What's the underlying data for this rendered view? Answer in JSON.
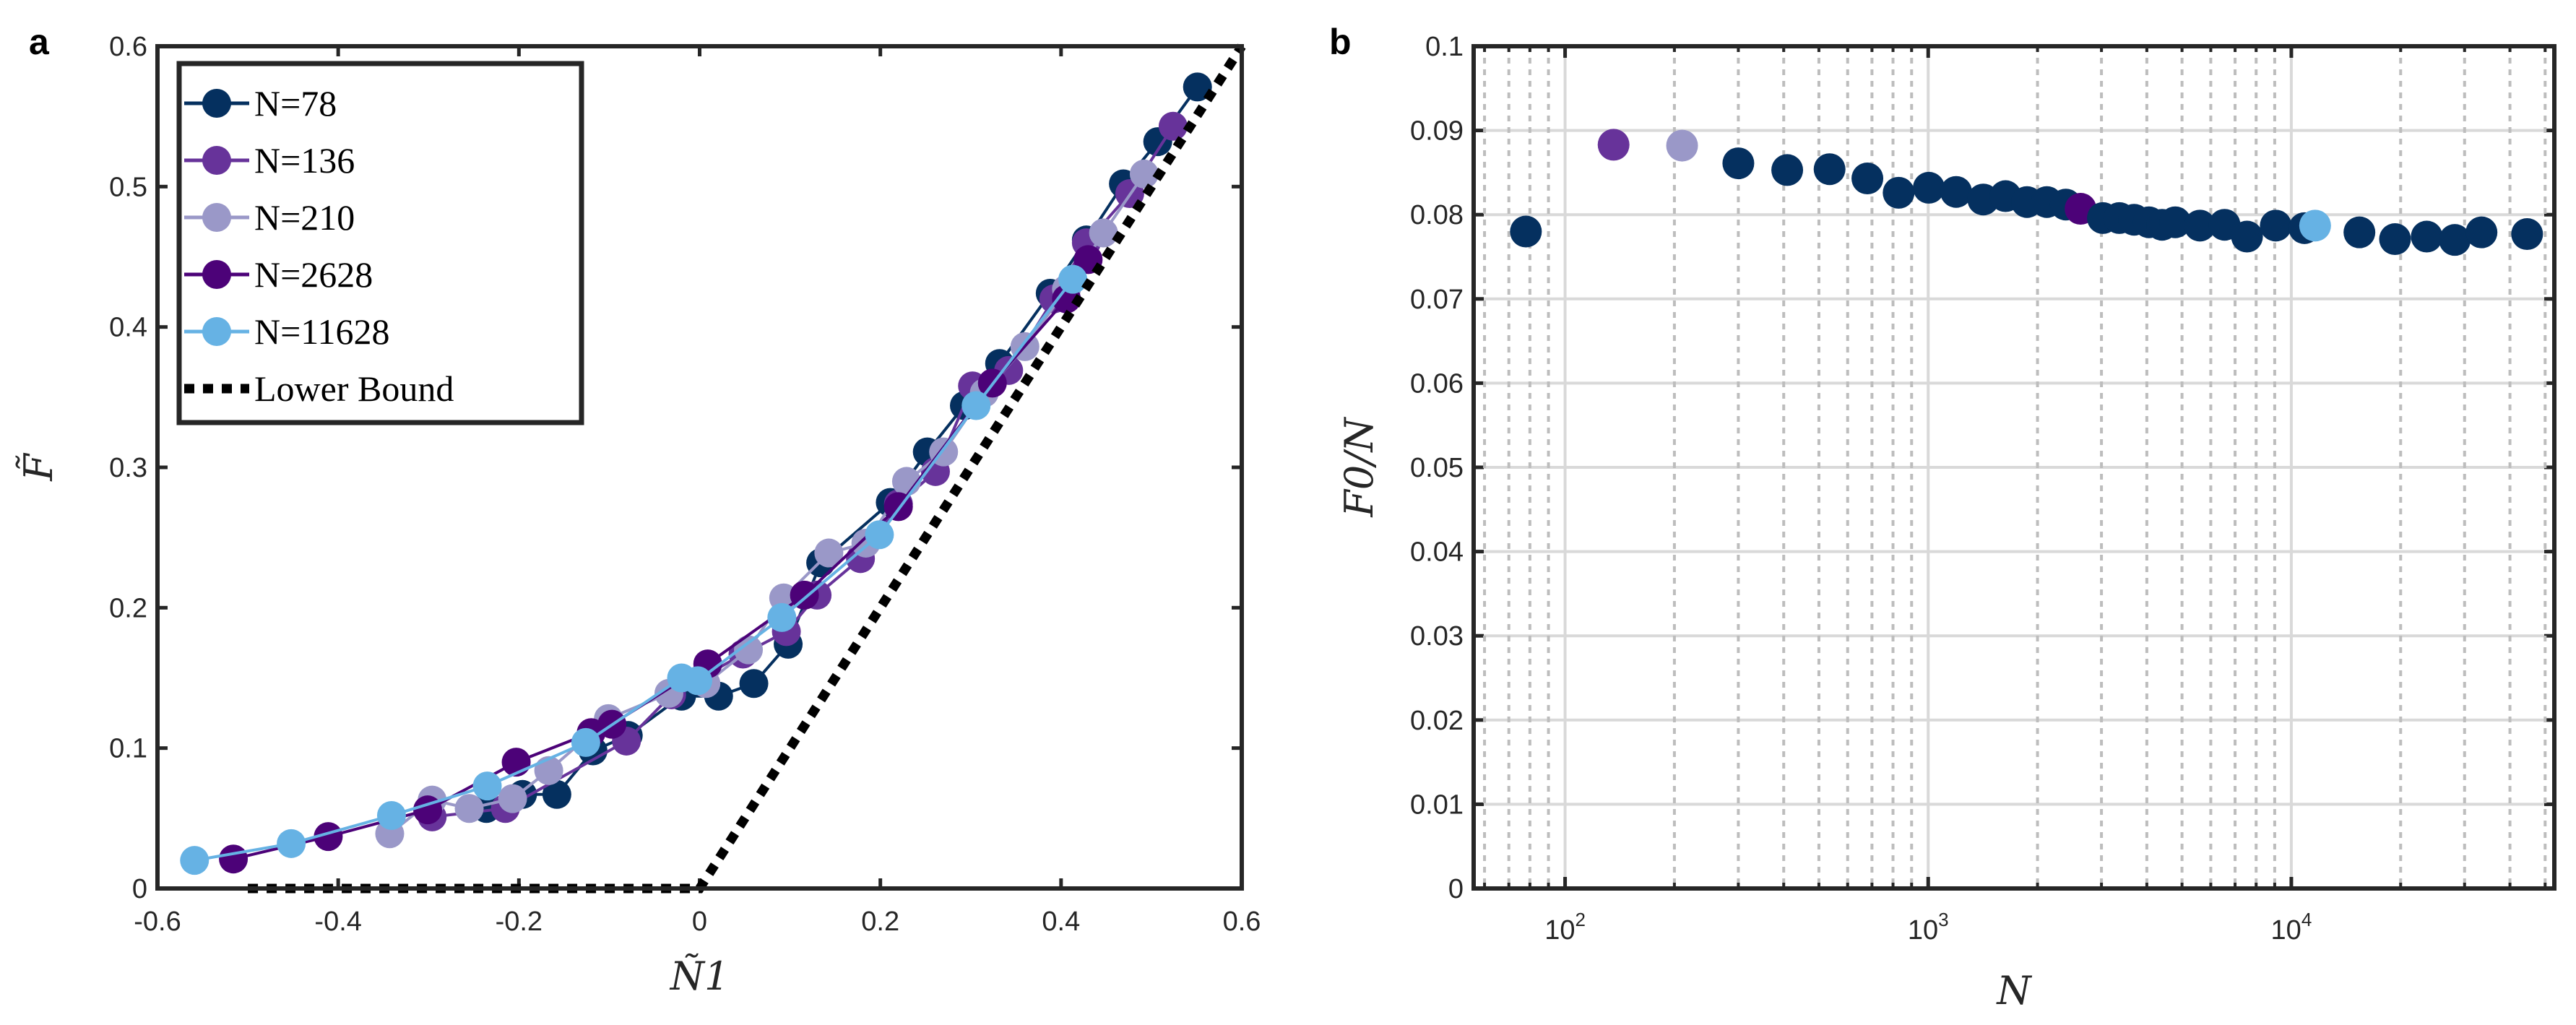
{
  "chart_data": [
    {
      "panel_label": "a",
      "type": "line",
      "xlabel": "Ñ1",
      "ylabel": "F̃",
      "xlim": [
        -0.6,
        0.6
      ],
      "ylim": [
        0,
        0.6
      ],
      "xticks": [
        "-0.6",
        "-0.4",
        "-0.2",
        "0",
        "0.2",
        "0.4",
        "0.6"
      ],
      "yticks": [
        "0",
        "0.1",
        "0.2",
        "0.3",
        "0.4",
        "0.5",
        "0.6"
      ],
      "grid": false,
      "legend_placement": "top-left",
      "series": [
        {
          "name": "N=78",
          "color": "#05305f",
          "marker": "circle",
          "x": [
            -0.236,
            -0.196,
            -0.158,
            -0.118,
            -0.079,
            -0.02,
            0.021,
            0.06,
            0.098,
            0.134,
            0.211,
            0.252,
            0.293,
            0.332,
            0.388,
            0.428,
            0.469,
            0.507,
            0.551
          ],
          "y": [
            0.057,
            0.067,
            0.067,
            0.098,
            0.109,
            0.137,
            0.137,
            0.146,
            0.174,
            0.232,
            0.275,
            0.311,
            0.344,
            0.374,
            0.424,
            0.462,
            0.502,
            0.532,
            0.571
          ]
        },
        {
          "name": "N=136",
          "color": "#67339a",
          "marker": "circle",
          "x": [
            -0.296,
            -0.215,
            -0.081,
            -0.031,
            0.048,
            0.096,
            0.13,
            0.178,
            0.22,
            0.261,
            0.302,
            0.342,
            0.392,
            0.428,
            0.476,
            0.524
          ],
          "y": [
            0.051,
            0.057,
            0.105,
            0.138,
            0.167,
            0.183,
            0.209,
            0.235,
            0.274,
            0.297,
            0.358,
            0.369,
            0.42,
            0.46,
            0.495,
            0.543
          ]
        },
        {
          "name": "N=210",
          "color": "#9a98c8",
          "marker": "circle",
          "x": [
            -0.343,
            -0.296,
            -0.255,
            -0.207,
            -0.167,
            -0.101,
            -0.034,
            0.007,
            0.054,
            0.093,
            0.143,
            0.184,
            0.229,
            0.27,
            0.315,
            0.36,
            0.406,
            0.447,
            0.492
          ],
          "y": [
            0.039,
            0.063,
            0.057,
            0.064,
            0.084,
            0.121,
            0.139,
            0.146,
            0.17,
            0.207,
            0.239,
            0.246,
            0.29,
            0.311,
            0.353,
            0.386,
            0.427,
            0.467,
            0.509
          ]
        },
        {
          "name": "N=2628",
          "color": "#4c0278",
          "marker": "circle",
          "x": [
            -0.516,
            -0.411,
            -0.301,
            -0.203,
            -0.12,
            -0.097,
            0.009,
            0.116,
            0.22,
            0.324,
            0.406,
            0.43
          ],
          "y": [
            0.021,
            0.037,
            0.056,
            0.09,
            0.111,
            0.117,
            0.16,
            0.209,
            0.272,
            0.36,
            0.42,
            0.448
          ]
        },
        {
          "name": "N=11628",
          "color": "#66b2e4",
          "marker": "circle",
          "x": [
            -0.559,
            -0.452,
            -0.341,
            -0.235,
            -0.126,
            -0.02,
            -0.002,
            0.091,
            0.199,
            0.306,
            0.413
          ],
          "y": [
            0.02,
            0.032,
            0.052,
            0.073,
            0.104,
            0.15,
            0.148,
            0.193,
            0.252,
            0.344,
            0.434
          ]
        },
        {
          "name": "Lower Bound",
          "color": "#000000",
          "style": "dotted",
          "x": [
            -0.5,
            0,
            0.6
          ],
          "y": [
            0,
            0,
            0.6
          ]
        }
      ]
    },
    {
      "panel_label": "b",
      "type": "scatter",
      "xlabel": "N",
      "ylabel": "F0/N",
      "xscale": "log",
      "xlim": [
        56,
        53000
      ],
      "ylim": [
        0,
        0.1
      ],
      "xticks": [
        "10^2",
        "10^3",
        "10^4"
      ],
      "yticks": [
        "0",
        "0.01",
        "0.02",
        "0.03",
        "0.04",
        "0.05",
        "0.06",
        "0.07",
        "0.08",
        "0.09",
        "0.1"
      ],
      "grid": true,
      "default_color": "#05305f",
      "highlight_colors": {
        "136": "#67339a",
        "210": "#9a98c8",
        "2628": "#4c0278",
        "11628": "#66b2e4"
      },
      "x": [
        78,
        136,
        210,
        300,
        409,
        535,
        680,
        829,
        1004,
        1194,
        1418,
        1633,
        1871,
        2122,
        2393,
        2628,
        3027,
        3360,
        3690,
        4053,
        4406,
        4790,
        5600,
        6550,
        7550,
        9060,
        10870,
        11628,
        15400,
        19300,
        23600,
        28200,
        33400,
        44600
      ],
      "y": [
        0.078,
        0.0883,
        0.0882,
        0.0861,
        0.0853,
        0.0854,
        0.0843,
        0.0826,
        0.0832,
        0.0827,
        0.0818,
        0.0822,
        0.0815,
        0.0815,
        0.0812,
        0.0807,
        0.0796,
        0.0796,
        0.0794,
        0.0791,
        0.0788,
        0.0791,
        0.0787,
        0.0788,
        0.0774,
        0.0787,
        0.0784,
        0.0787,
        0.0779,
        0.0771,
        0.0774,
        0.077,
        0.0779,
        0.0777
      ]
    }
  ]
}
